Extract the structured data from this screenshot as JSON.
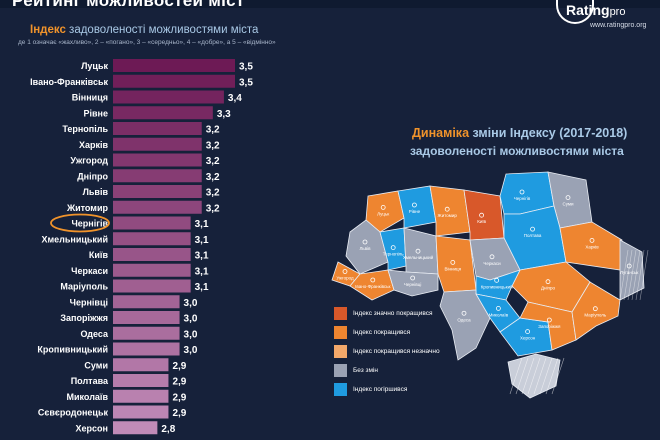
{
  "slide": {
    "title": "Рейтинг можливостей міст"
  },
  "logo": {
    "brand": "Rating",
    "brand_sub": "pro",
    "url": "www.ratingpro.org"
  },
  "chart_data": [
    {
      "type": "bar",
      "orientation": "horizontal",
      "title_accent": "Індекс",
      "title_rest": "задоволеності можливостями міста",
      "subtitle": "де 1 означає «жахливо», 2 – «погано», 3 – «середньо», 4 – «добре», а 5 – «відмінно»",
      "categories": [
        "Луцьк",
        "Івано-Франківськ",
        "Вінниця",
        "Рівне",
        "Тернопіль",
        "Харків",
        "Ужгород",
        "Дніпро",
        "Львів",
        "Житомир",
        "Чернігів",
        "Хмельницький",
        "Київ",
        "Черкаси",
        "Маріуполь",
        "Чернівці",
        "Запоріжжя",
        "Одеса",
        "Кропивницький",
        "Суми",
        "Полтава",
        "Миколаїв",
        "Сєвєродонецьк",
        "Херсон"
      ],
      "values": [
        3.5,
        3.5,
        3.4,
        3.3,
        3.2,
        3.2,
        3.2,
        3.2,
        3.2,
        3.2,
        3.1,
        3.1,
        3.1,
        3.1,
        3.1,
        3.0,
        3.0,
        3.0,
        3.0,
        2.9,
        2.9,
        2.9,
        2.9,
        2.8
      ],
      "value_labels": [
        "3,5",
        "3,5",
        "3,4",
        "3,3",
        "3,2",
        "3,2",
        "3,2",
        "3,2",
        "3,2",
        "3,2",
        "3,1",
        "3,1",
        "3,1",
        "3,1",
        "3,1",
        "3,0",
        "3,0",
        "3,0",
        "3,0",
        "2,9",
        "2,9",
        "2,9",
        "2,9",
        "2,8"
      ],
      "highlighted_category": "Чернігів",
      "highlight_color": "#f0932b",
      "bar_color_top": "#6d1a55",
      "bar_color_bottom": "#c08bb8"
    },
    {
      "type": "map",
      "title_accent": "Динаміка",
      "title_rest": "зміни Індексу (2017-2018)",
      "subtitle": "задоволеності можливостями міста",
      "legend": [
        {
          "label": "Індекс значно покращився",
          "color": "#d8582a"
        },
        {
          "label": "Індекс покращився",
          "color": "#ee8530"
        },
        {
          "label": "Індекс покращився незначно",
          "color": "#f3a86a"
        },
        {
          "label": "Без змін",
          "color": "#9aa2b4"
        },
        {
          "label": "Індекс погіршився",
          "color": "#1f9be0"
        }
      ],
      "regions": [
        {
          "name": "Луцьк",
          "category": "Індекс покращився"
        },
        {
          "name": "Рівне",
          "category": "Індекс погіршився"
        },
        {
          "name": "Житомир",
          "category": "Індекс покращився"
        },
        {
          "name": "Київ",
          "category": "Індекс значно покращився"
        },
        {
          "name": "Чернігів",
          "category": "Індекс погіршився"
        },
        {
          "name": "Суми",
          "category": "Без змін"
        },
        {
          "name": "Полтава",
          "category": "Індекс погіршився"
        },
        {
          "name": "Харків",
          "category": "Індекс покращився"
        },
        {
          "name": "Луганськ",
          "category": "Без змін"
        },
        {
          "name": "Львів",
          "category": "Без змін"
        },
        {
          "name": "Тернопіль",
          "category": "Індекс погіршився"
        },
        {
          "name": "Хмельницький",
          "category": "Без змін"
        },
        {
          "name": "Вінниця",
          "category": "Індекс покращився"
        },
        {
          "name": "Черкаси",
          "category": "Без змін"
        },
        {
          "name": "Дніпро",
          "category": "Індекс покращився"
        },
        {
          "name": "Кропивницький",
          "category": "Індекс погіршився"
        },
        {
          "name": "Ужгород",
          "category": "Індекс покращився"
        },
        {
          "name": "Івано-Франківськ",
          "category": "Індекс покращився"
        },
        {
          "name": "Чернівці",
          "category": "Без змін"
        },
        {
          "name": "Одеса",
          "category": "Без змін"
        },
        {
          "name": "Миколаїв",
          "category": "Індекс погіршився"
        },
        {
          "name": "Херсон",
          "category": "Індекс погіршився"
        },
        {
          "name": "Запоріжжя",
          "category": "Індекс покращився"
        },
        {
          "name": "Маріуполь",
          "category": "Індекс покращився"
        }
      ]
    }
  ]
}
